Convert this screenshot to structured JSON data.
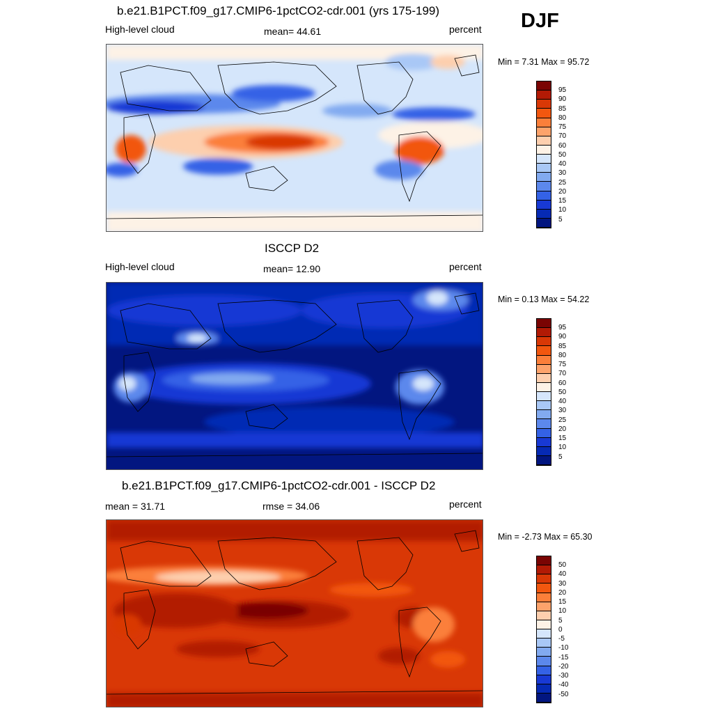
{
  "season": "DJF",
  "panels": [
    {
      "title": "b.e21.B1PCT.f09_g17.CMIP6-1pctCO2-cdr.001 (yrs 175-199)",
      "left_label": "High-level cloud",
      "center_label": "mean=  44.61",
      "right_label": "percent",
      "minmax": "Min =   7.31 Max =  95.72",
      "colorbar": {
        "labels": [
          "95",
          "90",
          "85",
          "80",
          "75",
          "70",
          "60",
          "50",
          "40",
          "30",
          "25",
          "20",
          "15",
          "10",
          "5"
        ],
        "colors": [
          "#7a0403",
          "#b21a05",
          "#d93806",
          "#f2570f",
          "#fb7f3a",
          "#fda36b",
          "#fdcfae",
          "#fdf2e6",
          "#d5e6fb",
          "#a9c8f6",
          "#82aaf0",
          "#5c88ec",
          "#3462e6",
          "#1839d4",
          "#062ab4",
          "#021680"
        ]
      }
    },
    {
      "title": "ISCCP D2",
      "left_label": "High-level cloud",
      "center_label": "mean=  12.90",
      "right_label": "percent",
      "minmax": "Min =   0.13 Max =  54.22",
      "colorbar": {
        "labels": [
          "95",
          "90",
          "85",
          "80",
          "75",
          "70",
          "60",
          "50",
          "40",
          "30",
          "25",
          "20",
          "15",
          "10",
          "5"
        ],
        "colors": [
          "#7a0403",
          "#b21a05",
          "#d93806",
          "#f2570f",
          "#fb7f3a",
          "#fda36b",
          "#fdcfae",
          "#fdf2e6",
          "#d5e6fb",
          "#a9c8f6",
          "#82aaf0",
          "#5c88ec",
          "#3462e6",
          "#1839d4",
          "#062ab4",
          "#021680"
        ]
      }
    },
    {
      "title": "b.e21.B1PCT.f09_g17.CMIP6-1pctCO2-cdr.001 - ISCCP D2",
      "left_label": "mean =  31.71",
      "center_label": "rmse =  34.06",
      "right_label": "percent",
      "minmax": "Min =  -2.73 Max =  65.30",
      "colorbar": {
        "labels": [
          "50",
          "40",
          "30",
          "20",
          "15",
          "10",
          "5",
          "0",
          "-5",
          "-10",
          "-15",
          "-20",
          "-30",
          "-40",
          "-50"
        ],
        "colors": [
          "#7a0403",
          "#b21a05",
          "#d93806",
          "#f2570f",
          "#fb7f3a",
          "#fda36b",
          "#fdcfae",
          "#fdf2e6",
          "#d5e6fb",
          "#a9c8f6",
          "#82aaf0",
          "#5c88ec",
          "#3462e6",
          "#1839d4",
          "#062ab4",
          "#021680"
        ]
      }
    }
  ]
}
